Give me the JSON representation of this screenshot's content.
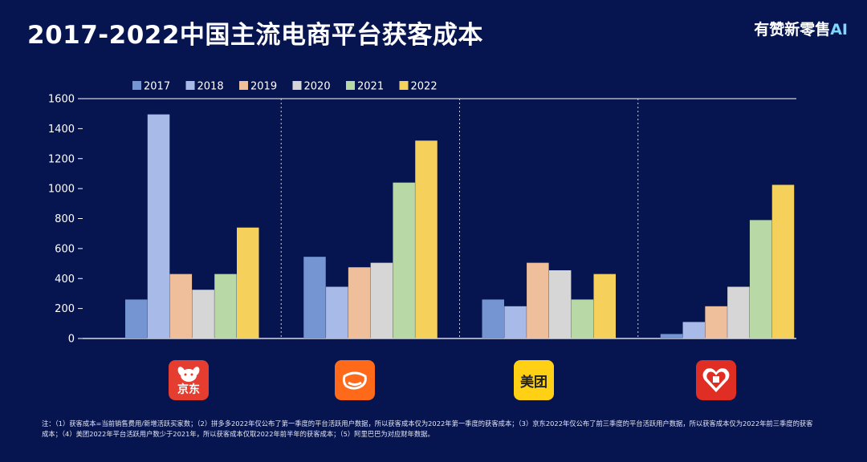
{
  "header": {
    "title": "2017-2022中国主流电商平台获客成本",
    "brand_main": "有赞新零售",
    "brand_ai": "AI"
  },
  "chart_data": {
    "type": "bar",
    "title": "2017-2022中国主流电商平台获客成本",
    "xlabel": "",
    "ylabel": "",
    "ylim": [
      0,
      1600
    ],
    "yticks": [
      0,
      200,
      400,
      600,
      800,
      1000,
      1200,
      1400,
      1600
    ],
    "grid": false,
    "legend_position": "top",
    "categories": [
      "京东",
      "阿里巴巴",
      "美团",
      "拼多多"
    ],
    "series": [
      {
        "name": "2017",
        "color": "#7494d2",
        "values": [
          260,
          545,
          260,
          30
        ]
      },
      {
        "name": "2018",
        "color": "#a8bbe8",
        "values": [
          1495,
          345,
          215,
          110
        ]
      },
      {
        "name": "2019",
        "color": "#efbf9c",
        "values": [
          430,
          475,
          505,
          215
        ]
      },
      {
        "name": "2020",
        "color": "#d6d6d6",
        "values": [
          325,
          505,
          455,
          345
        ]
      },
      {
        "name": "2021",
        "color": "#b8d8a6",
        "values": [
          430,
          1040,
          260,
          790
        ]
      },
      {
        "name": "2022",
        "color": "#f5d15c",
        "values": [
          740,
          1320,
          430,
          1025
        ]
      }
    ]
  },
  "logos": [
    {
      "name": "jd-logo",
      "text": "京东",
      "color": "#e53d2f"
    },
    {
      "name": "alibaba-logo",
      "text": "",
      "color": "#ff6a1a"
    },
    {
      "name": "meituan-logo",
      "text": "美团",
      "color": "#ffd014"
    },
    {
      "name": "pinduoduo-logo",
      "text": "",
      "color": "#e02e24"
    }
  ],
  "footnote": "注：（1）获客成本=当前销售费用/新增活跃买家数；（2）拼多多2022年仅公布了第一季度的平台活跃用户数据，所以获客成本仅为2022年第一季度的获客成本；（3）京东2022年仅公布了前三季度的平台活跃用户数据，所以获客成本仅为2022年前三季度的获客成本；（4）美团2022年平台活跃用户数少于2021年，所以获客成本仅取2022年前半年的获客成本；（5）阿里巴巴为对应财年数据。"
}
